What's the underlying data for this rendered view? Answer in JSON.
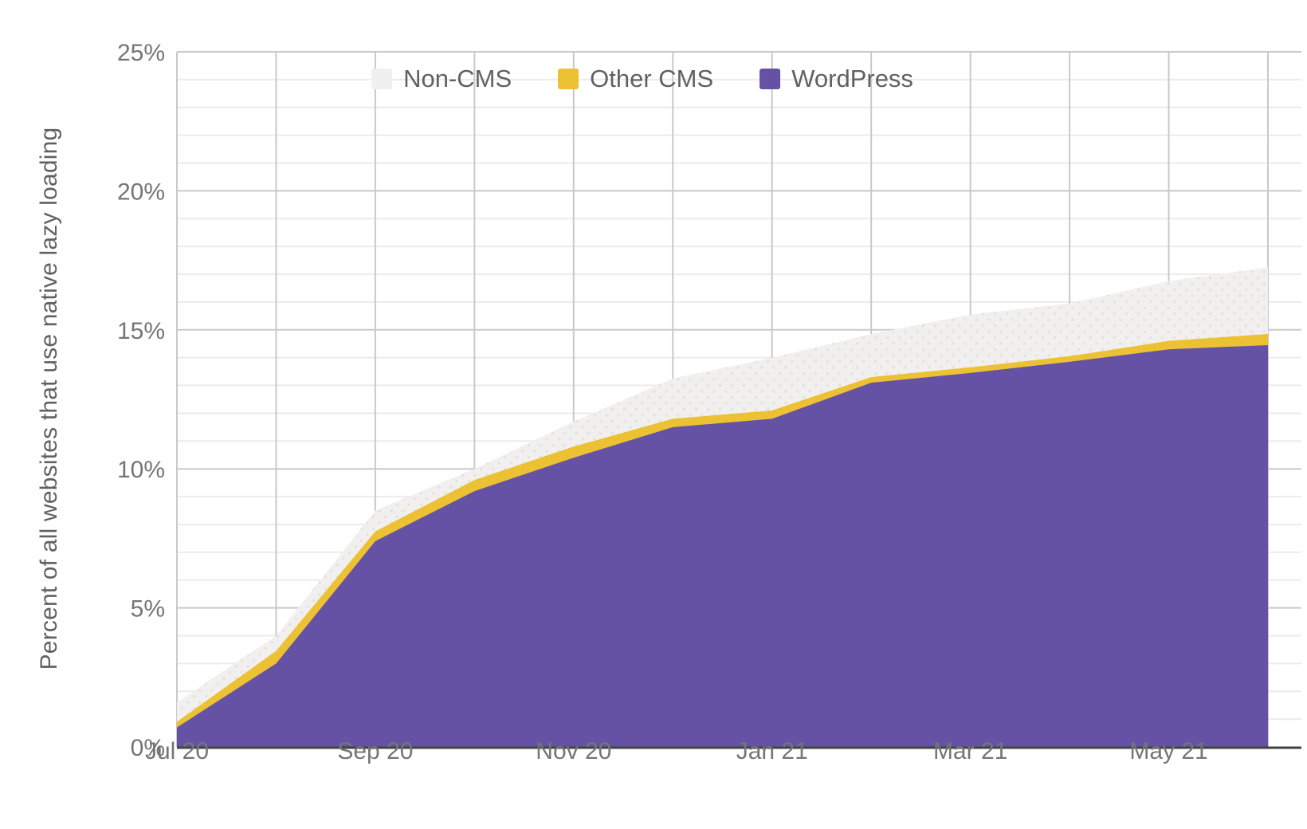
{
  "chart_data": {
    "type": "area",
    "stacked": true,
    "title": "",
    "xlabel": "",
    "ylabel": "Percent of all websites that use native lazy loading",
    "ylim": [
      0,
      25
    ],
    "y_minor_step": 1,
    "y_major_step": 5,
    "y_tick_labels": [
      "0%",
      "5%",
      "10%",
      "15%",
      "20%",
      "25%"
    ],
    "x": [
      "Jul 20",
      "Aug 20",
      "Sep 20",
      "Oct 20",
      "Nov 20",
      "Dec 20",
      "Jan 21",
      "Feb 21",
      "Mar 21",
      "Apr 21",
      "May 21",
      "Jun 21"
    ],
    "x_label_indices": [
      0,
      2,
      4,
      6,
      8,
      10
    ],
    "x_tick_labels": [
      "Jul 20",
      "Sep 20",
      "Nov 20",
      "Jan 21",
      "Mar 21",
      "May 21"
    ],
    "grid": true,
    "legend_position": "top",
    "series": [
      {
        "name": "WordPress",
        "color": "#6552a5",
        "values": [
          0.7,
          3.0,
          7.4,
          9.2,
          10.4,
          11.5,
          11.8,
          13.1,
          13.45,
          13.85,
          14.3,
          14.45
        ]
      },
      {
        "name": "Other CMS",
        "color": "#ecc134",
        "values": [
          0.2,
          0.45,
          0.35,
          0.4,
          0.4,
          0.3,
          0.3,
          0.2,
          0.2,
          0.2,
          0.3,
          0.4
        ]
      },
      {
        "name": "Non-CMS",
        "color": "#f1f0ee",
        "values": [
          0.7,
          0.55,
          0.75,
          0.4,
          0.9,
          1.45,
          1.9,
          1.55,
          1.9,
          1.9,
          2.15,
          2.4
        ]
      }
    ],
    "stacked_totals": [
      1.6,
      4.0,
      8.5,
      10.0,
      11.7,
      13.25,
      14.0,
      14.85,
      15.55,
      15.95,
      16.75,
      17.25
    ]
  },
  "legend": {
    "items": [
      {
        "label": "Non-CMS",
        "color": "#f1f0ee"
      },
      {
        "label": "Other CMS",
        "color": "#ecc134"
      },
      {
        "label": "WordPress",
        "color": "#6552a5"
      }
    ]
  },
  "colors": {
    "background": "#ffffff",
    "grid_minor": "#ebebeb",
    "grid_major": "#c9c9c9",
    "axis_line": "#424242",
    "tick_text": "#757575",
    "legend_text": "#616161",
    "non_cms_dot": "#e3e1dc"
  }
}
